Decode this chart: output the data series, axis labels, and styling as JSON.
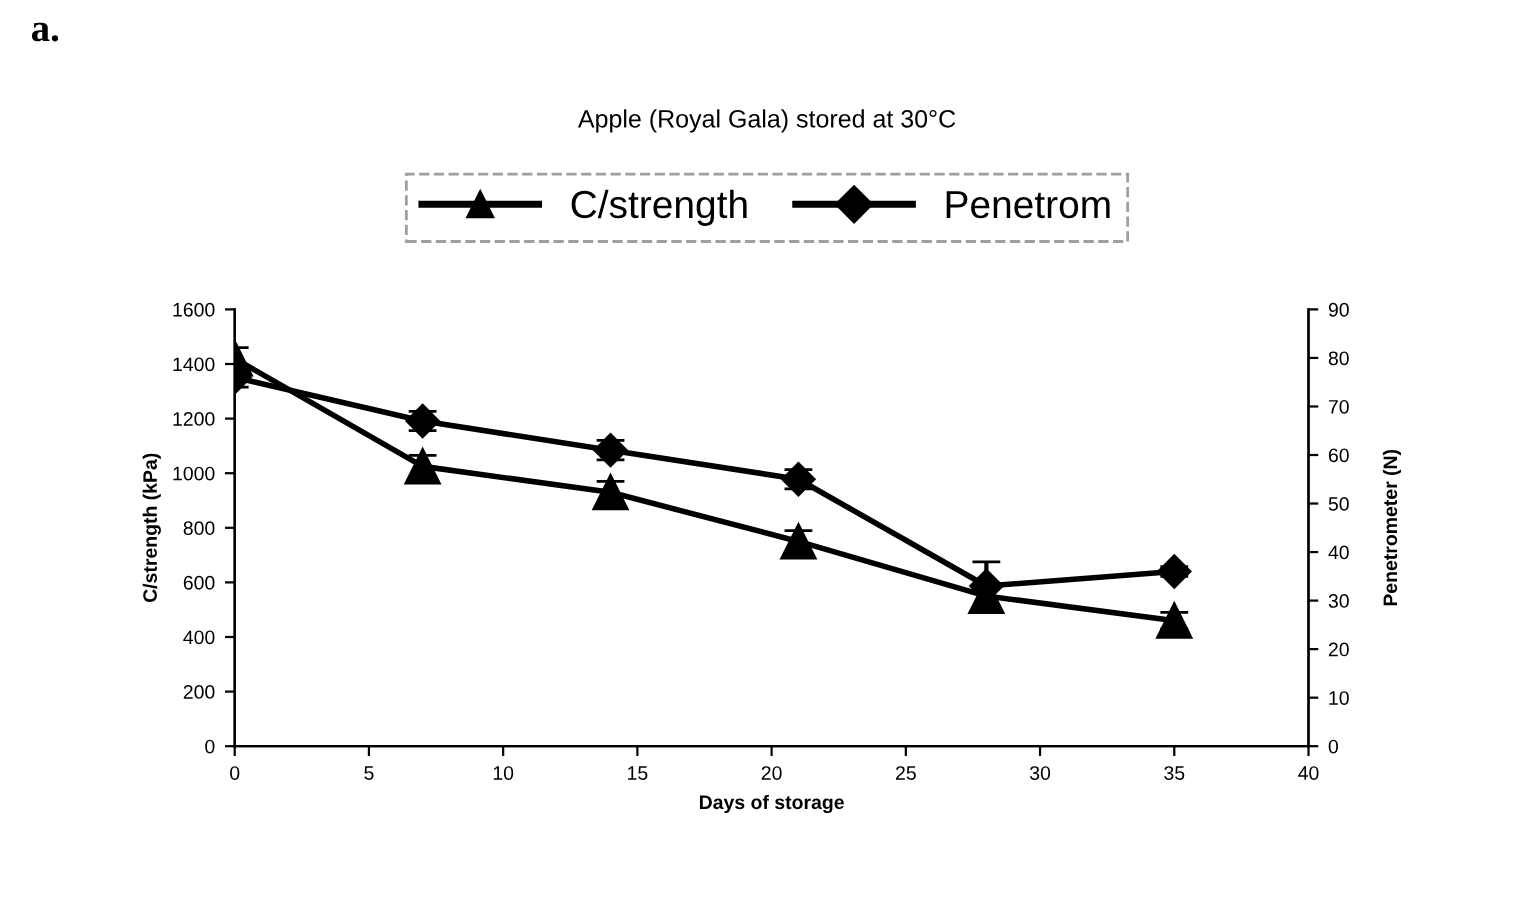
{
  "chart_data": {
    "type": "line",
    "title": "Apple (Royal Gala) stored at 30°C",
    "xlabel": "Days of storage",
    "ylabel": "C/strength (kPa)",
    "y2label": "Penetrometer (N)",
    "annotations": [
      "a."
    ],
    "x": [
      0,
      7,
      14,
      21,
      28,
      35
    ],
    "series": [
      {
        "name": "C/strength",
        "color": "#000000",
        "marker": "triangle",
        "values": [
          1420,
          1025,
          930,
          750,
          550,
          460
        ],
        "errors": [
          40,
          40,
          40,
          40,
          40,
          30
        ]
      },
      {
        "name": "Penetrom",
        "color": "#000000",
        "marker": "diamond",
        "axis": "y2",
        "values": [
          76,
          67,
          61,
          55,
          33,
          36
        ],
        "errors": [
          2,
          2,
          2,
          2,
          5,
          1
        ]
      }
    ],
    "xlim": [
      0,
      40
    ],
    "xticks": [
      0,
      5,
      10,
      15,
      20,
      25,
      30,
      35,
      40
    ],
    "ylim": [
      0,
      1600
    ],
    "yticks": [
      0,
      200,
      400,
      600,
      800,
      1000,
      1200,
      1400,
      1600
    ],
    "y2lim": [
      0,
      90
    ],
    "y2ticks": [
      0,
      10,
      20,
      30,
      40,
      50,
      60,
      70,
      80,
      90
    ],
    "grid": false,
    "legend": "top",
    "line_style": "solid"
  }
}
